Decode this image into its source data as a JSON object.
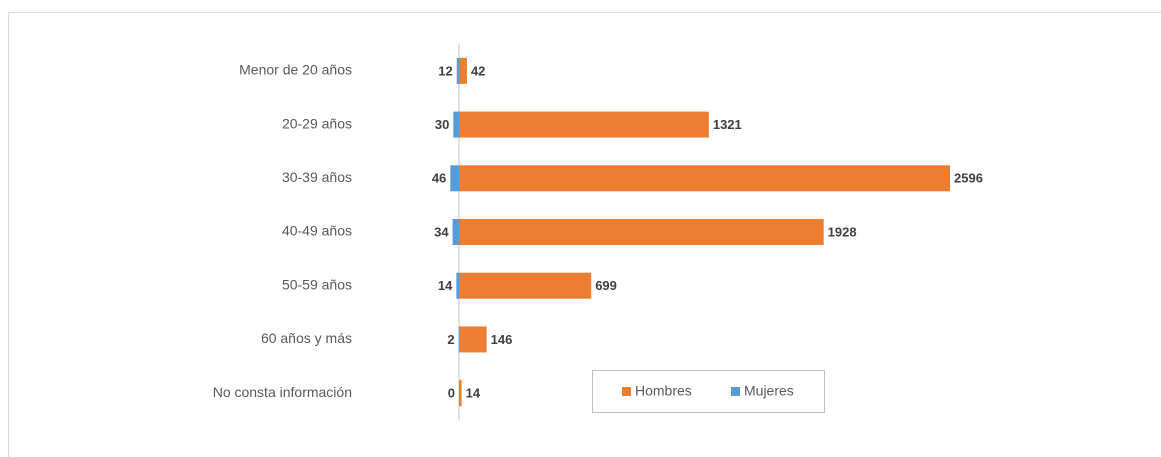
{
  "chart_data": {
    "type": "bar",
    "categories": [
      "Menor de 20 años",
      "20-29 años",
      "30-39 años",
      "40-49 años",
      "50-59 años",
      "60 años y más",
      "No consta información"
    ],
    "series": [
      {
        "name": "Hombres",
        "color": "#ed7d31",
        "values": [
          42,
          1321,
          2596,
          1928,
          699,
          146,
          14
        ]
      },
      {
        "name": "Mujeres",
        "color": "#5b9bd5",
        "values": [
          12,
          30,
          46,
          34,
          14,
          2,
          0
        ]
      }
    ]
  }
}
